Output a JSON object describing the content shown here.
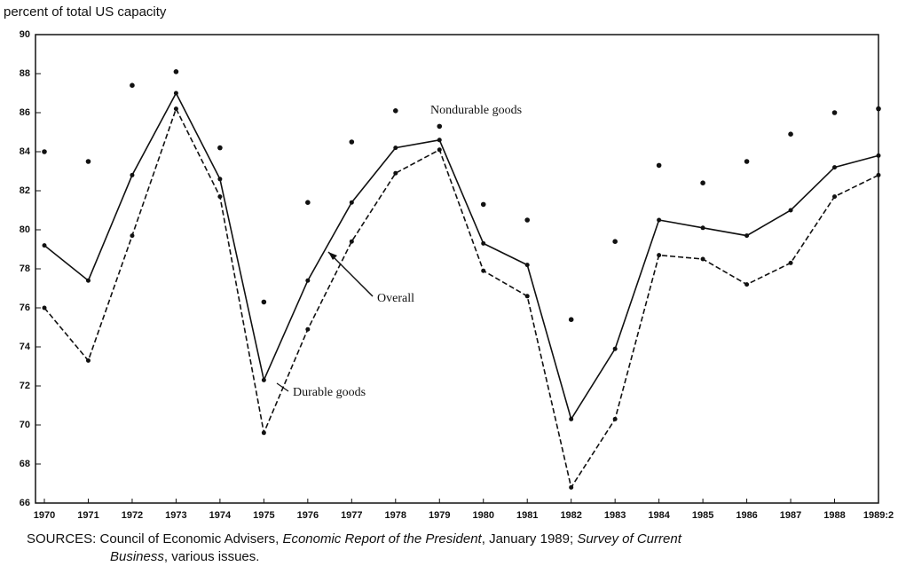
{
  "chart_data": {
    "type": "line",
    "y_label": "percent of total US capacity",
    "categories": [
      "1970",
      "1971",
      "1972",
      "1973",
      "1974",
      "1975",
      "1976",
      "1977",
      "1978",
      "1979",
      "1980",
      "1981",
      "1982",
      "1983",
      "1984",
      "1985",
      "1986",
      "1987",
      "1988",
      "1989:2"
    ],
    "series": [
      {
        "name": "Overall",
        "color": "#111111",
        "style": "solid",
        "values": [
          79.2,
          77.4,
          82.8,
          87.0,
          82.6,
          72.3,
          77.4,
          81.4,
          84.2,
          84.6,
          79.3,
          78.2,
          70.3,
          73.9,
          80.5,
          80.1,
          79.7,
          81.0,
          83.2,
          83.8
        ]
      },
      {
        "name": "Durable goods",
        "color": "#111111",
        "style": "dashed",
        "values": [
          76.0,
          73.3,
          79.7,
          86.2,
          81.7,
          69.6,
          74.9,
          79.4,
          82.9,
          84.1,
          77.9,
          76.6,
          66.8,
          70.3,
          78.7,
          78.5,
          77.2,
          78.3,
          81.7,
          82.8
        ]
      },
      {
        "name": "Nondurable goods",
        "color": "#111111",
        "style": "dots",
        "values": [
          84.0,
          83.5,
          87.4,
          88.1,
          84.2,
          76.3,
          81.4,
          84.5,
          86.1,
          85.3,
          81.3,
          80.5,
          75.4,
          79.4,
          83.3,
          82.4,
          83.5,
          84.9,
          86.0,
          86.2
        ]
      }
    ],
    "ylim": [
      66,
      90
    ],
    "yticks": [
      66,
      68,
      70,
      72,
      74,
      76,
      78,
      80,
      82,
      84,
      86,
      88,
      90
    ],
    "source": [
      "SOURCES: Council of Economic Advisers, ",
      "Economic Report of the President",
      ", January 1989; ",
      "Survey of Current",
      "Business",
      ", various issues."
    ]
  }
}
